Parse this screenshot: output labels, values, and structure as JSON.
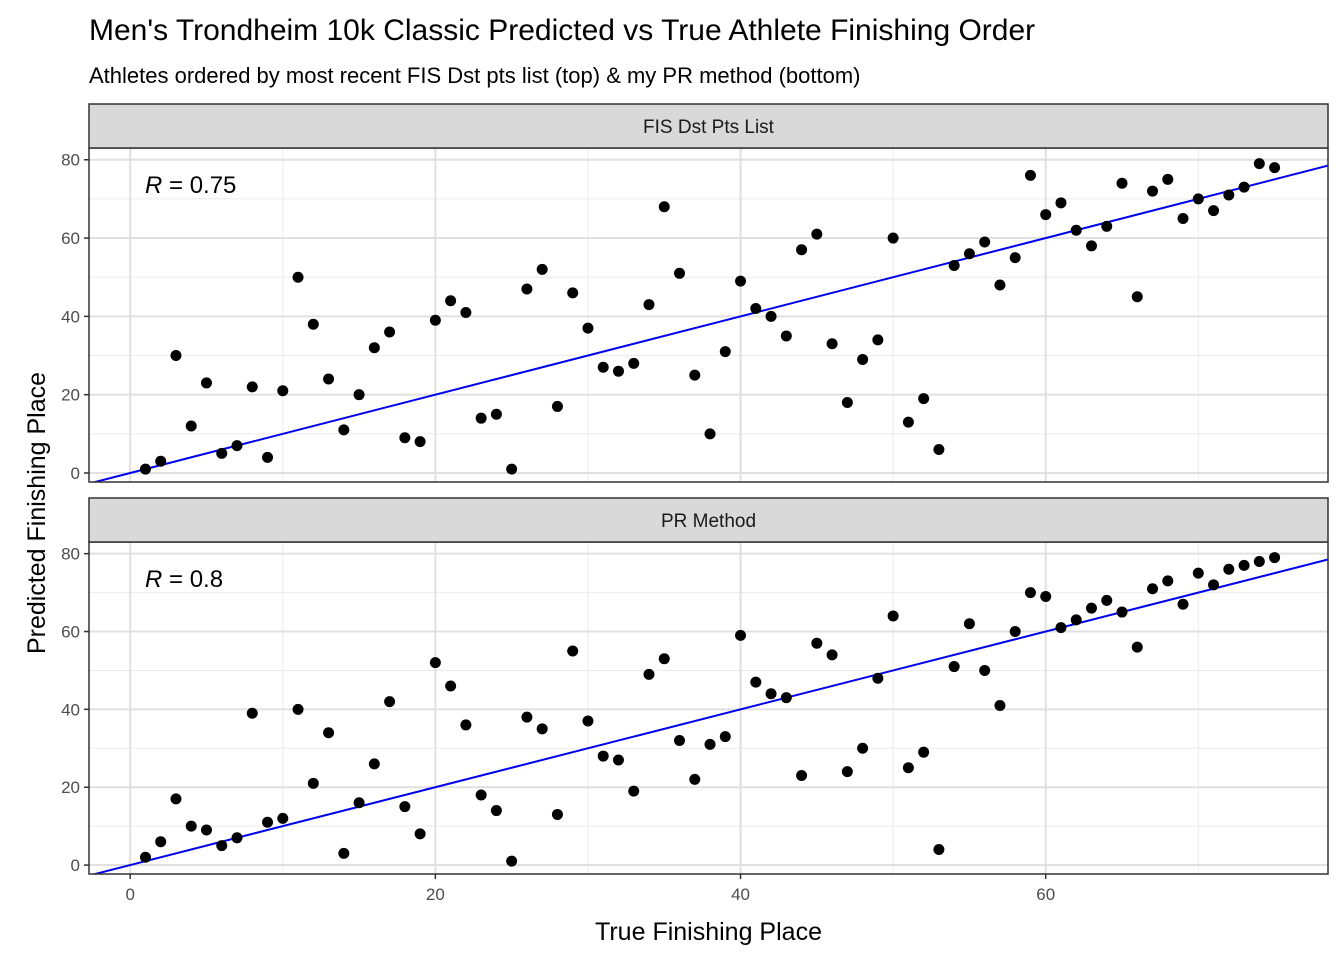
{
  "chart_data": {
    "type": "scatter",
    "title": "Men's Trondheim 10k Classic Predicted vs True Athlete Finishing Order",
    "subtitle": "Athletes ordered by most recent FIS Dst pts list (top) & my PR method (bottom)",
    "xlabel": "True Finishing Place",
    "ylabel": "Predicted Finishing Place",
    "xlim": [
      -2.7,
      78.5
    ],
    "ylim": [
      -2.3,
      83
    ],
    "x_ticks": [
      0,
      20,
      40,
      60
    ],
    "y_ticks": [
      0,
      20,
      40,
      60,
      80
    ],
    "x_tick_labels": [
      "0",
      "20",
      "40",
      "60"
    ],
    "y_tick_labels": [
      "0",
      "20",
      "40",
      "60",
      "80"
    ],
    "grid": true,
    "reference_line": {
      "slope": 1,
      "intercept": 0,
      "color": "#0000ee"
    },
    "point_color": "#000000",
    "panels": [
      {
        "strip_label": "FIS Dst Pts List",
        "annotation": {
          "italic": "R",
          "text": " = 0.75"
        },
        "x": [
          1,
          2,
          3,
          4,
          5,
          6,
          7,
          8,
          9,
          10,
          11,
          12,
          13,
          14,
          15,
          16,
          17,
          18,
          19,
          20,
          21,
          22,
          23,
          24,
          25,
          26,
          27,
          28,
          29,
          30,
          31,
          32,
          33,
          34,
          35,
          36,
          37,
          38,
          39,
          40,
          41,
          42,
          43,
          44,
          45,
          46,
          47,
          48,
          49,
          50,
          51,
          52,
          53,
          54,
          55,
          56,
          57,
          58,
          59,
          60,
          61,
          62,
          63,
          64,
          65,
          66,
          67,
          68,
          69,
          70,
          71,
          72,
          73,
          74,
          75
        ],
        "y": [
          1,
          3,
          30,
          12,
          23,
          5,
          7,
          22,
          4,
          21,
          50,
          38,
          24,
          11,
          20,
          32,
          36,
          9,
          8,
          39,
          44,
          41,
          14,
          15,
          1,
          47,
          52,
          17,
          46,
          37,
          27,
          26,
          28,
          43,
          68,
          51,
          25,
          10,
          31,
          49,
          42,
          40,
          35,
          57,
          61,
          33,
          18,
          29,
          34,
          60,
          13,
          19,
          6,
          53,
          56,
          59,
          48,
          55,
          76,
          66,
          69,
          62,
          58,
          63,
          74,
          45,
          72,
          75,
          65,
          70,
          67,
          71,
          73,
          79,
          78
        ]
      },
      {
        "strip_label": "PR Method",
        "annotation": {
          "italic": "R",
          "text": " = 0.8"
        },
        "x": [
          1,
          2,
          3,
          4,
          5,
          6,
          7,
          8,
          9,
          10,
          11,
          12,
          13,
          14,
          15,
          16,
          17,
          18,
          19,
          20,
          21,
          22,
          23,
          24,
          25,
          26,
          27,
          28,
          29,
          30,
          31,
          32,
          33,
          34,
          35,
          36,
          37,
          38,
          39,
          40,
          41,
          42,
          43,
          44,
          45,
          46,
          47,
          48,
          49,
          50,
          51,
          52,
          53,
          54,
          55,
          56,
          57,
          58,
          59,
          60,
          61,
          62,
          63,
          64,
          65,
          66,
          67,
          68,
          69,
          70,
          71,
          72,
          73,
          74,
          75
        ],
        "y": [
          2,
          6,
          17,
          10,
          9,
          5,
          7,
          39,
          11,
          12,
          40,
          21,
          34,
          3,
          16,
          26,
          42,
          15,
          8,
          52,
          46,
          36,
          18,
          14,
          1,
          38,
          35,
          13,
          55,
          37,
          28,
          27,
          19,
          49,
          53,
          32,
          22,
          31,
          33,
          59,
          47,
          44,
          43,
          23,
          57,
          54,
          24,
          30,
          48,
          64,
          25,
          29,
          4,
          51,
          62,
          50,
          41,
          60,
          70,
          69,
          61,
          63,
          66,
          68,
          65,
          56,
          71,
          73,
          67,
          75,
          72,
          76,
          77,
          78,
          79
        ]
      }
    ]
  }
}
